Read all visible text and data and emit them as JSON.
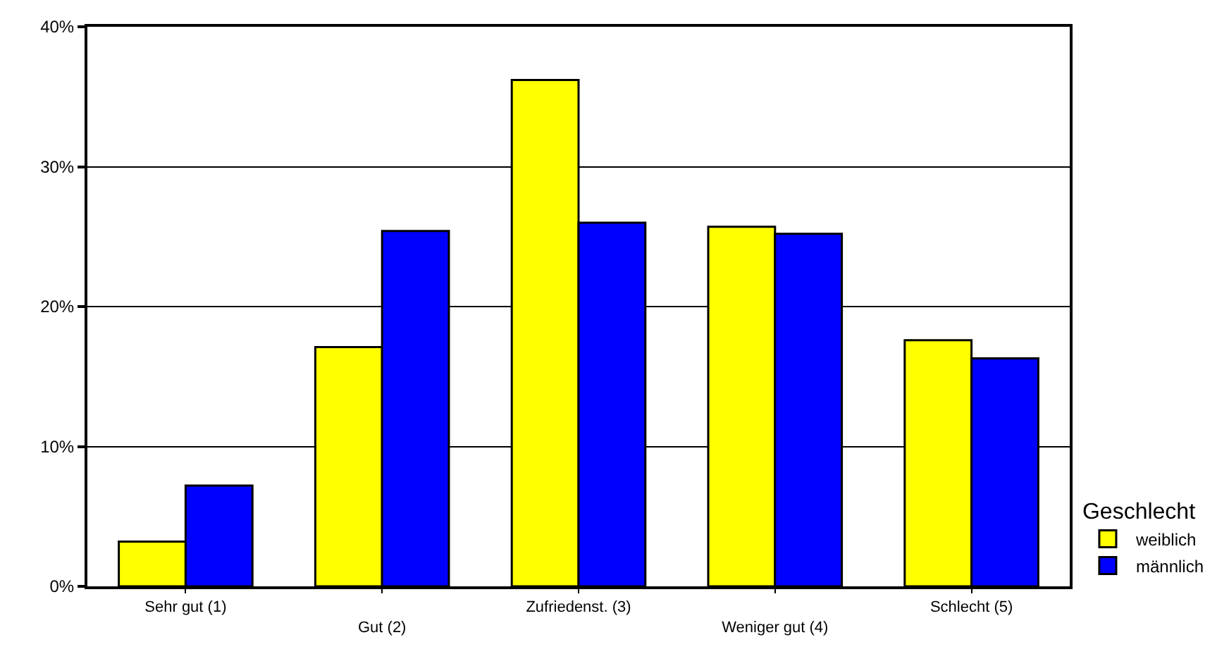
{
  "chart_data": {
    "type": "bar",
    "categories": [
      "Sehr gut (1)",
      "Gut (2)",
      "Zufriedenst. (3)",
      "Weniger gut (4)",
      "Schlecht (5)"
    ],
    "series": [
      {
        "name": "weiblich",
        "color": "#ffff00",
        "values": [
          3.2,
          17.1,
          36.2,
          25.7,
          17.6
        ]
      },
      {
        "name": "männlich",
        "color": "#0000ff",
        "values": [
          7.2,
          25.4,
          26.0,
          25.2,
          16.3
        ]
      }
    ],
    "legend_title": "Geschlecht",
    "ylim": [
      0,
      40
    ],
    "yticks": [
      {
        "value": 0,
        "label": "0%"
      },
      {
        "value": 10,
        "label": "10%"
      },
      {
        "value": 20,
        "label": "20%"
      },
      {
        "value": 30,
        "label": "30%"
      },
      {
        "value": 40,
        "label": "40%"
      }
    ],
    "grid": "y",
    "legend": "bottom right"
  }
}
